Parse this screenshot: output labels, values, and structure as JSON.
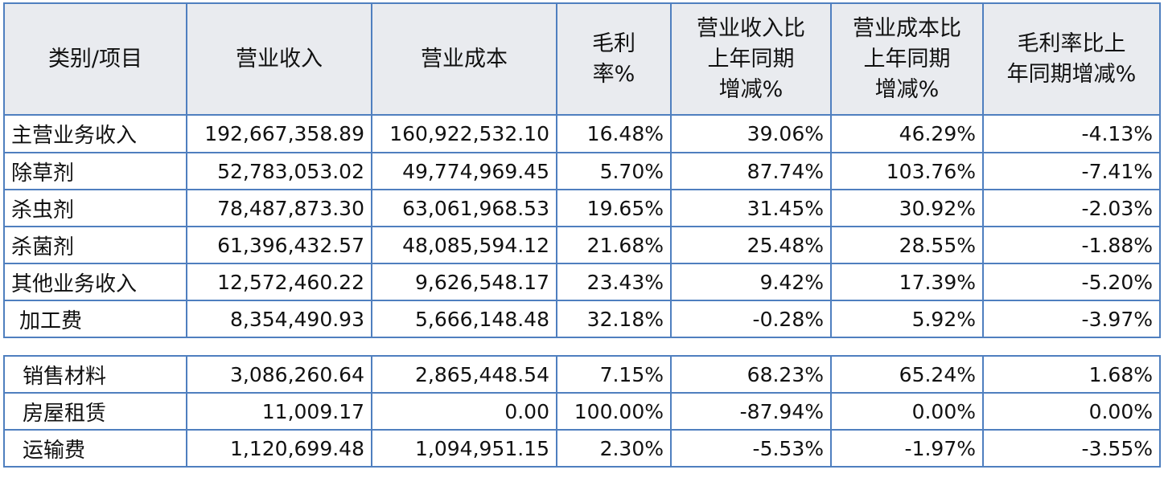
{
  "headers": [
    "类别/项目",
    "营业收入",
    "营业成本",
    "毛利\n率%",
    "营业收入比\n上年同期\n增减%",
    "营业成本比\n上年同期\n增减%",
    "毛利率比上\n年同期增减%"
  ],
  "rows": [
    [
      "主营业务收入",
      "192,667,358.89",
      "160,922,532.10",
      "16.48%",
      "39.06%",
      "46.29%",
      "-4.13%"
    ],
    [
      "除草剂",
      "52,783,053.02",
      "49,774,969.45",
      "5.70%",
      "87.74%",
      "103.76%",
      "-7.41%"
    ],
    [
      "杀虫剂",
      "78,487,873.30",
      "63,061,968.53",
      "19.65%",
      "31.45%",
      "30.92%",
      "-2.03%"
    ],
    [
      "杀菌剂",
      "61,396,432.57",
      "48,085,594.12",
      "21.68%",
      "25.48%",
      "28.55%",
      "-1.88%"
    ],
    [
      "其他业务收入",
      "12,572,460.22",
      "9,626,548.17",
      "23.43%",
      "9.42%",
      "17.39%",
      "-5.20%"
    ],
    [
      "加工费",
      "8,354,490.93",
      "5,666,148.48",
      "32.18%",
      "-0.28%",
      "5.92%",
      "-3.97%"
    ],
    [
      "销售材料",
      "3,086,260.64",
      "2,865,448.54",
      "7.15%",
      "68.23%",
      "65.24%",
      "1.68%"
    ],
    [
      "房屋租赁",
      "11,009.17",
      "0.00",
      "100.00%",
      "-87.94%",
      "0.00%",
      "0.00%"
    ],
    [
      "运输费",
      "1,120,699.48",
      "1,094,951.15",
      "2.30%",
      "-5.53%",
      "-1.97%",
      "-3.55%"
    ]
  ]
}
